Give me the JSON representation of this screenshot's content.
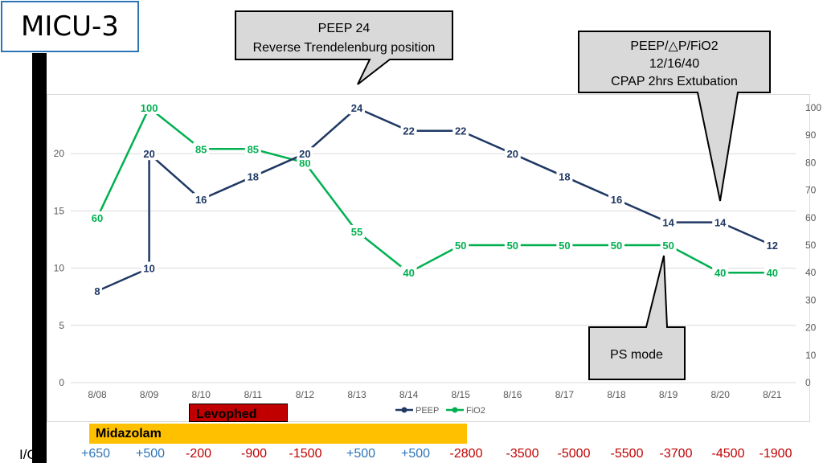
{
  "title": "MICU-3",
  "callouts": {
    "peep24": {
      "line1": "PEEP 24",
      "line2": "Reverse Trendelenburg position"
    },
    "extubation": {
      "line1": "PEEP/△P/FiO2",
      "line2": "12/16/40",
      "line3": "CPAP 2hrs Extubation"
    },
    "psmode": {
      "line1": "PS mode"
    }
  },
  "drugs": {
    "levophed": "Levophed",
    "midazolam": "Midazolam"
  },
  "io": {
    "label": "I/O",
    "values": [
      "+650",
      "+500",
      "-200",
      "-900",
      "-1500",
      "+500",
      "+500",
      "-2800",
      "-3500",
      "-5000",
      "-5500",
      "-3700",
      "-4500",
      "-1900"
    ]
  },
  "colors": {
    "peep": "#1f3864",
    "fio2": "#00b050",
    "positive": "#2e75b6",
    "negative": "#c00000",
    "levophed": "#c00000",
    "midazolam": "#ffc000"
  },
  "chart_data": {
    "type": "line",
    "categories": [
      "8/08",
      "8/09",
      "8/10",
      "8/11",
      "8/12",
      "8/13",
      "8/14",
      "8/15",
      "8/16",
      "8/17",
      "8/18",
      "8/19",
      "8/20",
      "8/21"
    ],
    "series": [
      {
        "name": "PEEP",
        "axis": "left",
        "x": [
          "8/08",
          "8/09",
          "8/09",
          "8/10",
          "8/11",
          "8/12",
          "8/13",
          "8/14",
          "8/15",
          "8/16",
          "8/17",
          "8/18",
          "8/19",
          "8/20",
          "8/21"
        ],
        "values": [
          8,
          10,
          20,
          16,
          18,
          20,
          24,
          22,
          22,
          20,
          18,
          16,
          14,
          14,
          12
        ]
      },
      {
        "name": "FiO2",
        "axis": "right",
        "x": [
          "8/08",
          "8/09",
          "8/10",
          "8/11",
          "8/12",
          "8/13",
          "8/14",
          "8/15",
          "8/16",
          "8/17",
          "8/18",
          "8/19",
          "8/20",
          "8/21"
        ],
        "values": [
          60,
          100,
          85,
          85,
          80,
          55,
          40,
          50,
          50,
          50,
          50,
          50,
          40,
          40
        ]
      }
    ],
    "y_left": {
      "ticks": [
        "0",
        "5",
        "10",
        "15",
        "20"
      ],
      "ylim": [
        0,
        25
      ]
    },
    "y_right": {
      "ticks": [
        "0",
        "10",
        "20",
        "30",
        "40",
        "50",
        "60",
        "70",
        "80",
        "90",
        "100"
      ],
      "ylim": [
        0,
        100
      ]
    },
    "legend": [
      "PEEP",
      "FiO2"
    ],
    "legend_position": "bottom"
  }
}
